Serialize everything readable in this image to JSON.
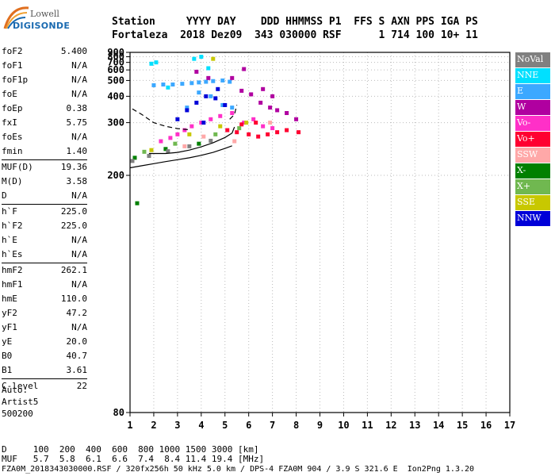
{
  "logo": {
    "top": "Lowell",
    "bottom": "DIGISONDE"
  },
  "header": {
    "line1": "Station     YYYY DAY    DDD HHMMSS P1  FFS S AXN PPS IGA PS",
    "line2": "Fortaleza  2018 Dez09  343 030000 RSF      1 714 100 10+ 11"
  },
  "params": [
    {
      "label": "foF2",
      "value": "5.400"
    },
    {
      "label": "foF1",
      "value": "N/A"
    },
    {
      "label": "foF1p",
      "value": "N/A"
    },
    {
      "label": "foE",
      "value": "N/A"
    },
    {
      "label": "foEp",
      "value": "0.38"
    },
    {
      "label": "fxI",
      "value": "5.75"
    },
    {
      "label": "foEs",
      "value": "N/A"
    },
    {
      "label": "fmin",
      "value": "1.40"
    },
    {
      "label": "MUF(D)",
      "value": "19.36"
    },
    {
      "label": "M(D)",
      "value": "3.58"
    },
    {
      "label": "D",
      "value": "N/A"
    },
    {
      "label": "h`F",
      "value": "225.0"
    },
    {
      "label": "h`F2",
      "value": "225.0"
    },
    {
      "label": "h`E",
      "value": "N/A"
    },
    {
      "label": "h`Es",
      "value": "N/A"
    },
    {
      "label": "hmF2",
      "value": "262.1"
    },
    {
      "label": "hmF1",
      "value": "N/A"
    },
    {
      "label": "hmE",
      "value": "110.0"
    },
    {
      "label": "yF2",
      "value": "47.2"
    },
    {
      "label": "yF1",
      "value": "N/A"
    },
    {
      "label": "yE",
      "value": "20.0"
    },
    {
      "label": "B0",
      "value": "40.7"
    },
    {
      "label": "B1",
      "value": "3.61"
    },
    {
      "label": "C-level",
      "value": "22"
    }
  ],
  "auto": {
    "line1": "Auto:",
    "line2": "Artist5",
    "line3": "500200"
  },
  "legend": [
    {
      "label": "NoVal",
      "color": "#808080"
    },
    {
      "label": "NNE",
      "color": "#00e0ff"
    },
    {
      "label": "E",
      "color": "#3ca8ff"
    },
    {
      "label": "W",
      "color": "#b000a0"
    },
    {
      "label": "Vo-",
      "color": "#ff30c8"
    },
    {
      "label": "Vo+",
      "color": "#ff0030"
    },
    {
      "label": "SSW",
      "color": "#ffa8a8"
    },
    {
      "label": "X-",
      "color": "#008000"
    },
    {
      "label": "X+",
      "color": "#70b850"
    },
    {
      "label": "SSE",
      "color": "#c8c800"
    },
    {
      "label": "NNW",
      "color": "#0000d8"
    }
  ],
  "bottom": {
    "line1": "D     100  200  400  600  800 1000 1500 3000 [km]",
    "line2": "MUF   5.7  5.8  6.1  6.6  7.4  8.4 11.4 19.4 [MHz]",
    "line3": "FZA0M_2018343030000.RSF / 320fx256h 50 kHz 5.0 km / DPS-4 FZA0M 904 / 3.9 S 321.6 E  Ion2Png 1.3.20"
  },
  "chart_data": {
    "type": "scatter",
    "title": "",
    "xlabel": "",
    "ylabel": "",
    "x_range": [
      1,
      17
    ],
    "y_range": [
      80,
      900
    ],
    "x_ticks": [
      1,
      2,
      3,
      4,
      5,
      6,
      7,
      8,
      9,
      10,
      11,
      12,
      13,
      14,
      15,
      16,
      17
    ],
    "y_ticks": [
      80,
      200,
      300,
      400,
      500,
      600,
      700,
      800,
      900
    ],
    "y_scale": "reciprocal",
    "grid": true,
    "series": [
      {
        "name": "NNE",
        "color": "#00e0ff",
        "points": [
          [
            1.9,
            680
          ],
          [
            2.1,
            700
          ],
          [
            4.0,
            800
          ],
          [
            3.7,
            760
          ],
          [
            4.3,
            620
          ],
          [
            2.6,
            450
          ]
        ]
      },
      {
        "name": "E",
        "color": "#3ca8ff",
        "points": [
          [
            2.0,
            465
          ],
          [
            2.4,
            470
          ],
          [
            2.8,
            470
          ],
          [
            3.2,
            475
          ],
          [
            3.6,
            480
          ],
          [
            3.9,
            485
          ],
          [
            4.2,
            490
          ],
          [
            4.5,
            495
          ],
          [
            4.9,
            500
          ],
          [
            5.2,
            490
          ],
          [
            3.9,
            420
          ],
          [
            4.4,
            400
          ],
          [
            4.9,
            360
          ],
          [
            5.3,
            350
          ],
          [
            3.4,
            350
          ]
        ]
      },
      {
        "name": "W",
        "color": "#b000a0",
        "points": [
          [
            5.3,
            520
          ],
          [
            5.7,
            430
          ],
          [
            6.1,
            410
          ],
          [
            6.5,
            370
          ],
          [
            6.9,
            350
          ],
          [
            7.2,
            340
          ],
          [
            7.6,
            330
          ],
          [
            8.0,
            310
          ],
          [
            5.8,
            610
          ],
          [
            4.3,
            520
          ],
          [
            3.8,
            580
          ],
          [
            6.6,
            440
          ],
          [
            7.0,
            400
          ]
        ]
      },
      {
        "name": "Vo-",
        "color": "#ff30c8",
        "points": [
          [
            2.3,
            255
          ],
          [
            2.7,
            262
          ],
          [
            3.0,
            270
          ],
          [
            3.3,
            280
          ],
          [
            3.6,
            290
          ],
          [
            4.0,
            300
          ],
          [
            4.4,
            310
          ],
          [
            4.8,
            320
          ],
          [
            5.3,
            330
          ],
          [
            5.8,
            300
          ],
          [
            6.2,
            310
          ],
          [
            6.6,
            290
          ],
          [
            7.0,
            285
          ]
        ]
      },
      {
        "name": "Vo+",
        "color": "#ff0030",
        "points": [
          [
            5.1,
            280
          ],
          [
            5.5,
            275
          ],
          [
            6.0,
            270
          ],
          [
            6.4,
            265
          ],
          [
            6.8,
            270
          ],
          [
            7.2,
            275
          ],
          [
            7.6,
            280
          ],
          [
            8.1,
            275
          ],
          [
            5.7,
            295
          ],
          [
            6.3,
            300
          ]
        ]
      },
      {
        "name": "SSW",
        "color": "#ffa8a8",
        "points": [
          [
            3.3,
            245
          ],
          [
            4.1,
            265
          ],
          [
            6.9,
            300
          ],
          [
            5.4,
            255
          ]
        ]
      },
      {
        "name": "X-",
        "color": "#008000",
        "points": [
          [
            1.2,
            225
          ],
          [
            1.3,
            170
          ],
          [
            2.5,
            240
          ],
          [
            3.9,
            250
          ]
        ]
      },
      {
        "name": "X+",
        "color": "#70b850",
        "points": [
          [
            1.6,
            235
          ],
          [
            2.9,
            250
          ],
          [
            4.6,
            270
          ],
          [
            5.6,
            285
          ]
        ]
      },
      {
        "name": "SSE",
        "color": "#c8c800",
        "points": [
          [
            1.9,
            238
          ],
          [
            3.5,
            270
          ],
          [
            4.8,
            290
          ],
          [
            5.9,
            300
          ],
          [
            4.5,
            760
          ]
        ]
      },
      {
        "name": "NNW",
        "color": "#0000d8",
        "points": [
          [
            3.0,
            310
          ],
          [
            3.4,
            340
          ],
          [
            3.8,
            370
          ],
          [
            4.2,
            400
          ],
          [
            4.6,
            390
          ],
          [
            4.1,
            300
          ],
          [
            4.7,
            440
          ],
          [
            5.0,
            360
          ]
        ]
      },
      {
        "name": "NoVal",
        "color": "#808080",
        "points": [
          [
            1.1,
            220
          ],
          [
            1.8,
            228
          ],
          [
            2.6,
            236
          ],
          [
            3.5,
            245
          ],
          [
            4.4,
            256
          ]
        ]
      }
    ],
    "lines": [
      {
        "style": "solid",
        "points": [
          [
            1.0,
            210
          ],
          [
            1.5,
            213
          ],
          [
            2.0,
            216
          ],
          [
            2.5,
            219
          ],
          [
            3.0,
            222
          ],
          [
            3.5,
            225
          ],
          [
            4.0,
            229
          ],
          [
            4.5,
            234
          ],
          [
            5.0,
            241
          ],
          [
            5.3,
            246
          ]
        ]
      },
      {
        "style": "solid",
        "points": [
          [
            1.8,
            232
          ],
          [
            2.5,
            232
          ],
          [
            3.0,
            234
          ],
          [
            3.5,
            238
          ],
          [
            4.0,
            244
          ],
          [
            4.5,
            252
          ],
          [
            5.0,
            263
          ],
          [
            5.3,
            273
          ],
          [
            5.4,
            288
          ]
        ]
      },
      {
        "style": "dashed",
        "points": [
          [
            1.1,
            345
          ],
          [
            1.5,
            325
          ],
          [
            2.0,
            300
          ],
          [
            2.5,
            290
          ],
          [
            3.0,
            284
          ],
          [
            3.5,
            281
          ]
        ]
      },
      {
        "style": "dashed",
        "points": [
          [
            5.2,
            310
          ],
          [
            5.4,
            325
          ],
          [
            5.5,
            360
          ]
        ]
      }
    ]
  }
}
